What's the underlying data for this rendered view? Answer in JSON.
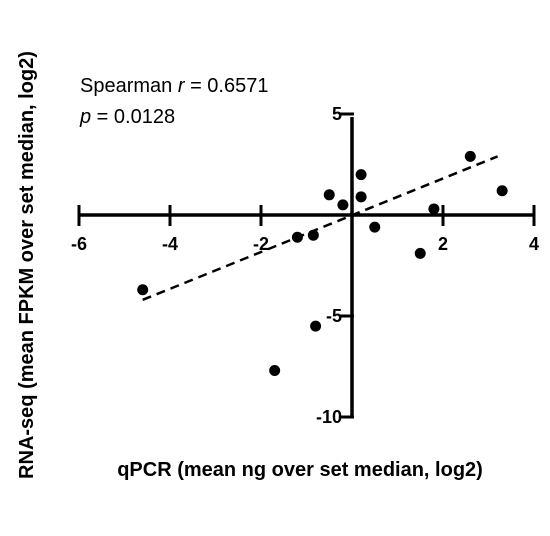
{
  "chart_data": {
    "type": "scatter",
    "title": "",
    "xlabel": "qPCR (mean ng over set median, log2)",
    "ylabel": "RNA-seq (mean FPKM over set median, log2)",
    "xlim": [
      -6,
      4
    ],
    "ylim": [
      -10,
      5
    ],
    "x_ticks": [
      -6,
      -4,
      -2,
      2,
      4
    ],
    "y_ticks": [
      5,
      -5,
      -10
    ],
    "grid": false,
    "annotations": {
      "stat_prefix": "Spearman ",
      "r_symbol": "r",
      "r_value": " = 0.6571",
      "p_symbol": "p",
      "p_value": " = 0.0128"
    },
    "points": [
      {
        "x": -4.6,
        "y": -3.7
      },
      {
        "x": -1.7,
        "y": -7.7
      },
      {
        "x": -1.2,
        "y": -1.1
      },
      {
        "x": -0.85,
        "y": -1.0
      },
      {
        "x": -0.8,
        "y": -5.5
      },
      {
        "x": -0.5,
        "y": 1.0
      },
      {
        "x": -0.2,
        "y": 0.5
      },
      {
        "x": 0.2,
        "y": 2.0
      },
      {
        "x": 0.2,
        "y": 0.9
      },
      {
        "x": 0.5,
        "y": -0.6
      },
      {
        "x": 1.5,
        "y": -1.9
      },
      {
        "x": 1.8,
        "y": 0.3
      },
      {
        "x": 2.6,
        "y": 2.9
      },
      {
        "x": 3.3,
        "y": 1.2
      }
    ],
    "trendline": {
      "x1": -4.6,
      "y1": -4.2,
      "x2": 3.2,
      "y2": 2.9
    }
  }
}
